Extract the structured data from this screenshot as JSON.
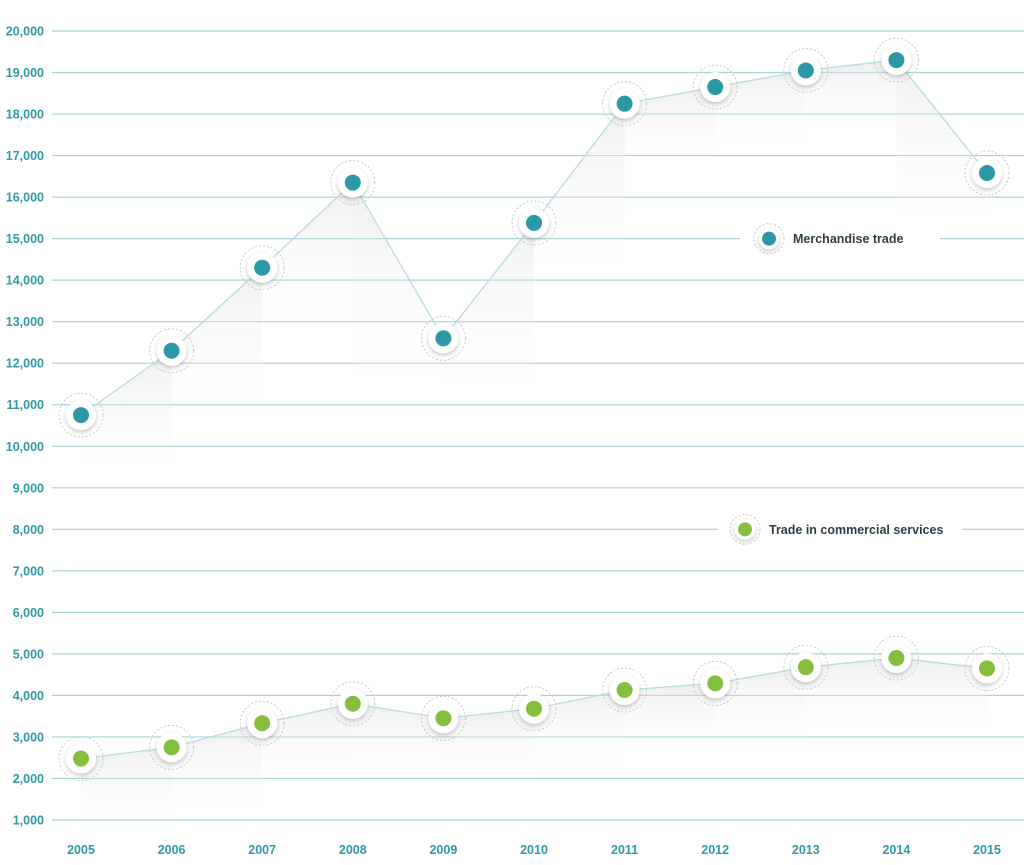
{
  "chart_data": {
    "type": "line",
    "title": "",
    "xlabel": "",
    "ylabel": "",
    "categories": [
      "2005",
      "2006",
      "2007",
      "2008",
      "2009",
      "2010",
      "2011",
      "2012",
      "2013",
      "2014",
      "2015"
    ],
    "ylim": [
      800,
      20000
    ],
    "yticks": [
      20000,
      19000,
      18000,
      17000,
      16000,
      15000,
      14000,
      13000,
      12000,
      11000,
      10000,
      9000,
      8000,
      7000,
      6000,
      5000,
      4000,
      3000,
      2000,
      1000
    ],
    "ytick_labels": [
      "20,000",
      "19,000",
      "18,000",
      "17,000",
      "16,000",
      "15,000",
      "14,000",
      "13,000",
      "12,000",
      "11,000",
      "10,000",
      "9,000",
      "8,000",
      "7,000",
      "6,000",
      "5,000",
      "4,000",
      "3,000",
      "2,000",
      "1,000"
    ],
    "grid": true,
    "series": [
      {
        "name": "Merchandise trade",
        "color": "#2b98a6",
        "values": [
          10750,
          12300,
          14300,
          16350,
          12600,
          15380,
          18250,
          18650,
          19050,
          19300,
          16580
        ]
      },
      {
        "name": "Trade in commercial services",
        "color": "#86bf3e",
        "values": [
          2480,
          2750,
          3330,
          3800,
          3450,
          3680,
          4130,
          4290,
          4680,
          4900,
          4650
        ]
      }
    ]
  }
}
